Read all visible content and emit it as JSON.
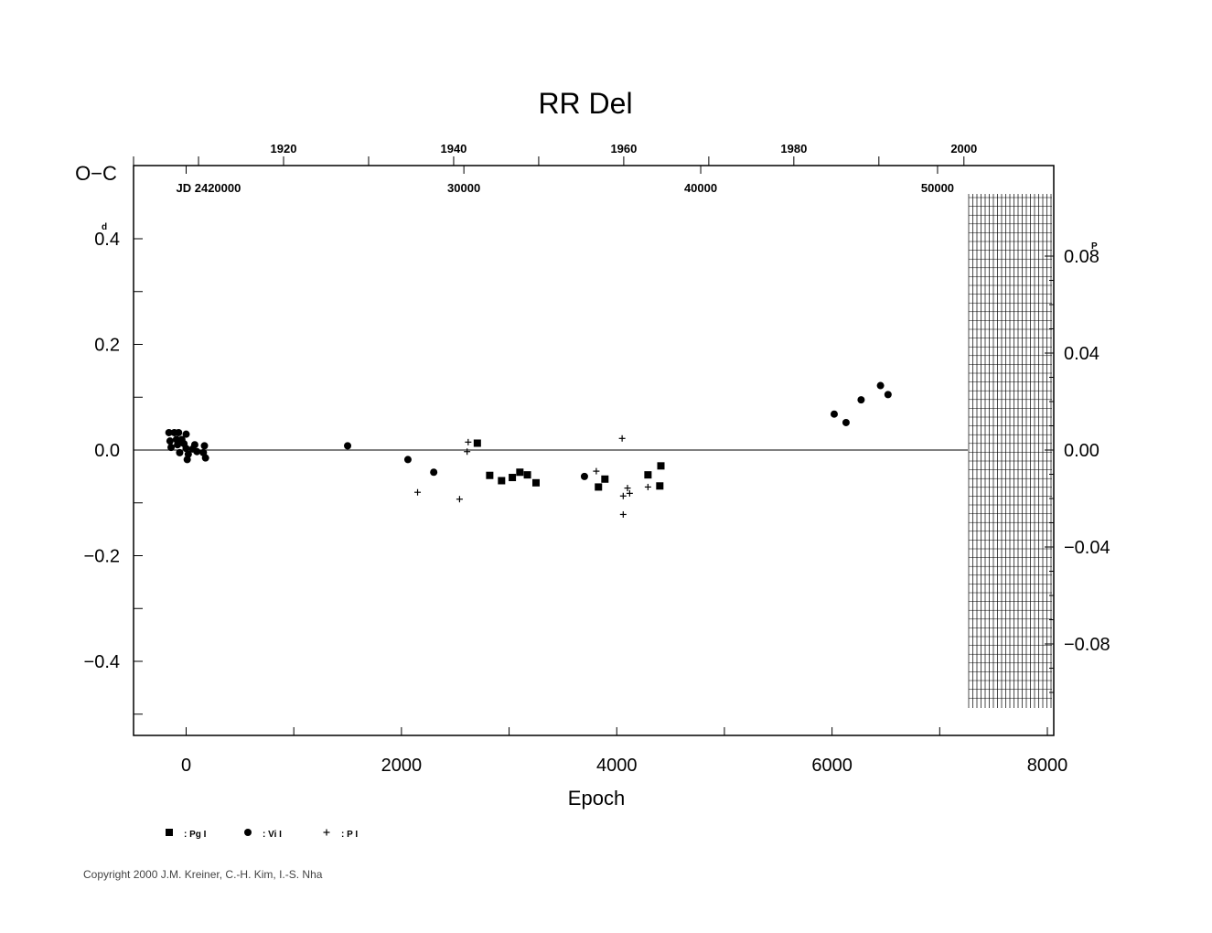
{
  "chart_data": {
    "type": "scatter",
    "title": "RR Del",
    "xlabel": "Epoch",
    "ylabel": "O−C",
    "y_unit_left": "d",
    "y_unit_right": "P",
    "xlim": [
      -500,
      8000
    ],
    "ylim": [
      -0.54,
      0.54
    ],
    "y2lim": [
      -0.108,
      0.108
    ],
    "x_ticks": [
      0,
      2000,
      4000,
      6000,
      8000
    ],
    "x_tick_labels": [
      "0",
      "2000",
      "4000",
      "6000",
      "8000"
    ],
    "y_ticks": [
      0.4,
      0.2,
      0.0,
      -0.2,
      -0.4
    ],
    "y_tick_labels": [
      "0.4",
      "0.2",
      "0.0",
      "−0.2",
      "−0.4"
    ],
    "y2_ticks": [
      0.08,
      0.04,
      0.0,
      -0.04,
      -0.08
    ],
    "y2_tick_labels": [
      "0.08",
      "0.04",
      "0.00",
      "−0.04",
      "−0.08"
    ],
    "year_axis": {
      "ticks": [
        {
          "epoch": 905,
          "label": "1920"
        },
        {
          "epoch": 2485,
          "label": "1940"
        },
        {
          "epoch": 4065,
          "label": "1960"
        },
        {
          "epoch": 5645,
          "label": "1980"
        },
        {
          "epoch": 7225,
          "label": "2000"
        }
      ]
    },
    "jd_axis": {
      "ticks": [
        {
          "epoch": 0,
          "label": "JD  2420000"
        },
        {
          "epoch": 2580,
          "label": "30000"
        },
        {
          "epoch": 4780,
          "label": "40000"
        },
        {
          "epoch": 6980,
          "label": "50000"
        }
      ]
    },
    "grid": false,
    "legend_position": "bottom-left",
    "series": [
      {
        "name": ": Pg  I",
        "marker": "square",
        "points": [
          [
            2705,
            0.013
          ],
          [
            2820,
            -0.048
          ],
          [
            2930,
            -0.058
          ],
          [
            3030,
            -0.052
          ],
          [
            3100,
            -0.042
          ],
          [
            3170,
            -0.047
          ],
          [
            3250,
            -0.062
          ],
          [
            3830,
            -0.07
          ],
          [
            3890,
            -0.055
          ],
          [
            4290,
            -0.047
          ],
          [
            4400,
            -0.068
          ],
          [
            4410,
            -0.03
          ]
        ]
      },
      {
        "name": ": Vi  I",
        "marker": "circle",
        "points": [
          [
            -160,
            0.033
          ],
          [
            -150,
            0.017
          ],
          [
            -140,
            0.005
          ],
          [
            -110,
            0.033
          ],
          [
            -90,
            0.02
          ],
          [
            -80,
            0.01
          ],
          [
            -70,
            0.033
          ],
          [
            -60,
            -0.005
          ],
          [
            -40,
            0.02
          ],
          [
            -20,
            0.012
          ],
          [
            0,
            0.03
          ],
          [
            0,
            0.003
          ],
          [
            10,
            -0.018
          ],
          [
            20,
            -0.008
          ],
          [
            60,
            0.002
          ],
          [
            80,
            0.01
          ],
          [
            100,
            -0.003
          ],
          [
            160,
            -0.005
          ],
          [
            170,
            0.008
          ],
          [
            180,
            -0.015
          ],
          [
            1500,
            0.008
          ],
          [
            2060,
            -0.018
          ],
          [
            2300,
            -0.042
          ],
          [
            3700,
            -0.05
          ],
          [
            6020,
            0.068
          ],
          [
            6130,
            0.052
          ],
          [
            6270,
            0.095
          ],
          [
            6450,
            0.122
          ],
          [
            6520,
            0.105
          ]
        ]
      },
      {
        "name": ": P  I",
        "marker": "plus",
        "points": [
          [
            2150,
            -0.08
          ],
          [
            2540,
            -0.093
          ],
          [
            2610,
            -0.003
          ],
          [
            2620,
            0.015
          ],
          [
            3810,
            -0.04
          ],
          [
            4050,
            0.022
          ],
          [
            4060,
            -0.122
          ],
          [
            4060,
            -0.087
          ],
          [
            4100,
            -0.072
          ],
          [
            4120,
            -0.082
          ],
          [
            4290,
            -0.07
          ]
        ]
      }
    ]
  },
  "copyright": "Copyright 2000 J.M. Kreiner, C.-H. Kim, I.-S. Nha"
}
